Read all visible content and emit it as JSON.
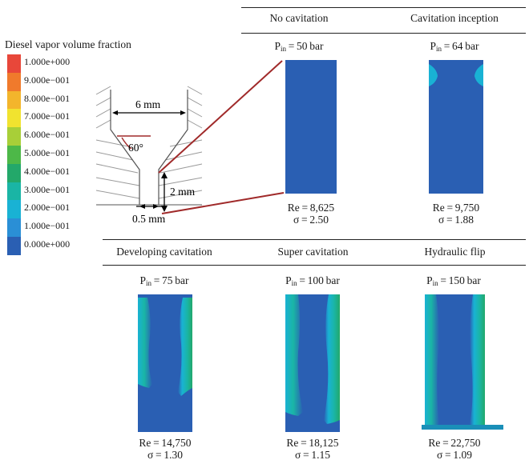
{
  "legend": {
    "title": "Diesel vapor volume fraction",
    "ticks": [
      "1.000e+000",
      "9.000e−001",
      "8.000e−001",
      "7.000e−001",
      "6.000e−001",
      "5.000e−001",
      "4.000e−001",
      "3.000e−001",
      "2.000e−001",
      "1.000e−001",
      "0.000e+000"
    ],
    "colors": [
      "#e8473a",
      "#f07a2c",
      "#f3b52c",
      "#f1e32f",
      "#a8cf38",
      "#4db848",
      "#23a86a",
      "#1ab5a5",
      "#19b2d4",
      "#2a8fd6",
      "#2a5fb3"
    ]
  },
  "nozzle": {
    "width_label": "6 mm",
    "angle_label": "60°",
    "length_label": "2 mm",
    "orifice_label": "0.5 mm"
  },
  "regimes": [
    {
      "title": "No cavitation",
      "pin_value": "50",
      "re": "Re = 8,625",
      "sigma": "σ = 2.50"
    },
    {
      "title": "Cavitation inception",
      "pin_value": "64",
      "re": "Re = 9,750",
      "sigma": "σ = 1.88"
    },
    {
      "title": "Developing cavitation",
      "pin_value": "75",
      "re": "Re = 14,750",
      "sigma": "σ = 1.30"
    },
    {
      "title": "Super cavitation",
      "pin_value": "100",
      "re": "Re = 18,125",
      "sigma": "σ = 1.15"
    },
    {
      "title": "Hydraulic flip",
      "pin_value": "150",
      "re": "Re = 22,750",
      "sigma": "σ = 1.09"
    }
  ],
  "pin_prefix": "P",
  "pin_sub": "in",
  "pin_suffix": " bar",
  "pin_eq": " = "
}
